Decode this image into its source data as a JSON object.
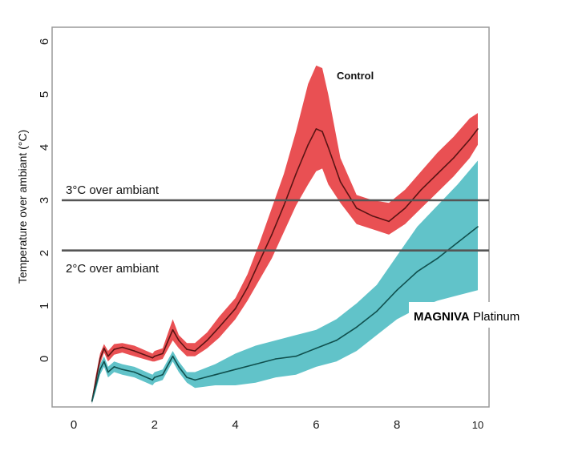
{
  "chart_data": {
    "type": "line",
    "ylabel": "Temperature over ambiant (°C)",
    "xlabel": "",
    "xlim": [
      -0.5,
      10.3
    ],
    "ylim": [
      -0.8,
      6.4
    ],
    "x_ticks": [
      "0",
      "2",
      "4",
      "6",
      "8",
      "10"
    ],
    "y_ticks": [
      "0",
      "1",
      "2",
      "3",
      "4",
      "5",
      "6"
    ],
    "grid": false,
    "reference_lines": [
      {
        "y": 3,
        "label": "3°C over ambiant",
        "color": "#555555"
      },
      {
        "y": 2.05,
        "label": "2°C over ambiant",
        "color": "#555555"
      }
    ],
    "series": [
      {
        "name": "Control",
        "band_color": "#e8474a",
        "line_color": "#5a1414",
        "x": [
          0.45,
          0.55,
          0.65,
          0.75,
          0.85,
          1.0,
          1.2,
          1.5,
          1.95,
          2.0,
          2.2,
          2.45,
          2.6,
          2.8,
          3.0,
          3.3,
          3.6,
          4.0,
          4.3,
          4.6,
          4.9,
          5.2,
          5.5,
          5.8,
          6.0,
          6.15,
          6.3,
          6.6,
          7.0,
          7.4,
          7.8,
          8.2,
          8.6,
          9.0,
          9.4,
          9.8,
          10.0
        ],
        "values": [
          -0.8,
          -0.4,
          0.0,
          0.2,
          0.05,
          0.18,
          0.22,
          0.15,
          0.02,
          0.05,
          0.1,
          0.55,
          0.35,
          0.18,
          0.15,
          0.35,
          0.6,
          0.95,
          1.35,
          1.85,
          2.35,
          2.9,
          3.5,
          4.05,
          4.35,
          4.3,
          4.0,
          3.35,
          2.85,
          2.7,
          2.6,
          2.85,
          3.2,
          3.5,
          3.8,
          4.15,
          4.35
        ],
        "upper": [
          -0.75,
          -0.3,
          0.1,
          0.28,
          0.15,
          0.28,
          0.3,
          0.25,
          0.1,
          0.15,
          0.2,
          0.75,
          0.45,
          0.3,
          0.3,
          0.5,
          0.8,
          1.15,
          1.6,
          2.2,
          2.85,
          3.5,
          4.3,
          5.2,
          5.55,
          5.5,
          5.0,
          3.8,
          3.1,
          3.0,
          2.95,
          3.2,
          3.55,
          3.9,
          4.2,
          4.55,
          4.65
        ],
        "lower": [
          -0.85,
          -0.5,
          -0.1,
          0.12,
          -0.05,
          0.08,
          0.12,
          0.05,
          -0.05,
          -0.05,
          0.0,
          0.35,
          0.2,
          0.05,
          0.05,
          0.2,
          0.4,
          0.75,
          1.1,
          1.5,
          1.9,
          2.4,
          2.9,
          3.3,
          3.55,
          3.6,
          3.3,
          2.95,
          2.55,
          2.45,
          2.35,
          2.55,
          2.85,
          3.15,
          3.45,
          3.8,
          4.05
        ]
      },
      {
        "name": "MAGNIVA Platinum",
        "band_color": "#58c0c6",
        "line_color": "#10504e",
        "x": [
          0.45,
          0.55,
          0.65,
          0.75,
          0.85,
          1.0,
          1.2,
          1.5,
          1.95,
          2.0,
          2.2,
          2.45,
          2.6,
          2.8,
          3.0,
          3.5,
          4.0,
          4.5,
          5.0,
          5.5,
          6.0,
          6.5,
          7.0,
          7.5,
          8.0,
          8.5,
          9.0,
          9.5,
          10.0
        ],
        "values": [
          -0.8,
          -0.5,
          -0.2,
          -0.05,
          -0.25,
          -0.15,
          -0.2,
          -0.25,
          -0.4,
          -0.35,
          -0.3,
          0.05,
          -0.15,
          -0.35,
          -0.4,
          -0.3,
          -0.2,
          -0.1,
          0.0,
          0.05,
          0.2,
          0.35,
          0.6,
          0.9,
          1.3,
          1.65,
          1.9,
          2.2,
          2.5
        ],
        "upper": [
          -0.75,
          -0.4,
          -0.1,
          0.05,
          -0.15,
          -0.05,
          -0.1,
          -0.15,
          -0.3,
          -0.25,
          -0.2,
          0.15,
          -0.05,
          -0.25,
          -0.25,
          -0.1,
          0.1,
          0.25,
          0.35,
          0.45,
          0.55,
          0.75,
          1.05,
          1.4,
          1.95,
          2.5,
          2.9,
          3.3,
          3.75
        ],
        "lower": [
          -0.85,
          -0.6,
          -0.3,
          -0.15,
          -0.35,
          -0.25,
          -0.3,
          -0.35,
          -0.5,
          -0.45,
          -0.4,
          -0.05,
          -0.25,
          -0.45,
          -0.55,
          -0.5,
          -0.5,
          -0.45,
          -0.35,
          -0.3,
          -0.15,
          -0.05,
          0.15,
          0.45,
          0.75,
          0.95,
          1.1,
          1.2,
          1.3
        ]
      }
    ],
    "annotations": {
      "control_label": "Control",
      "magniva_bold": "MAGNIVA",
      "magniva_rest": " Platinum"
    }
  }
}
